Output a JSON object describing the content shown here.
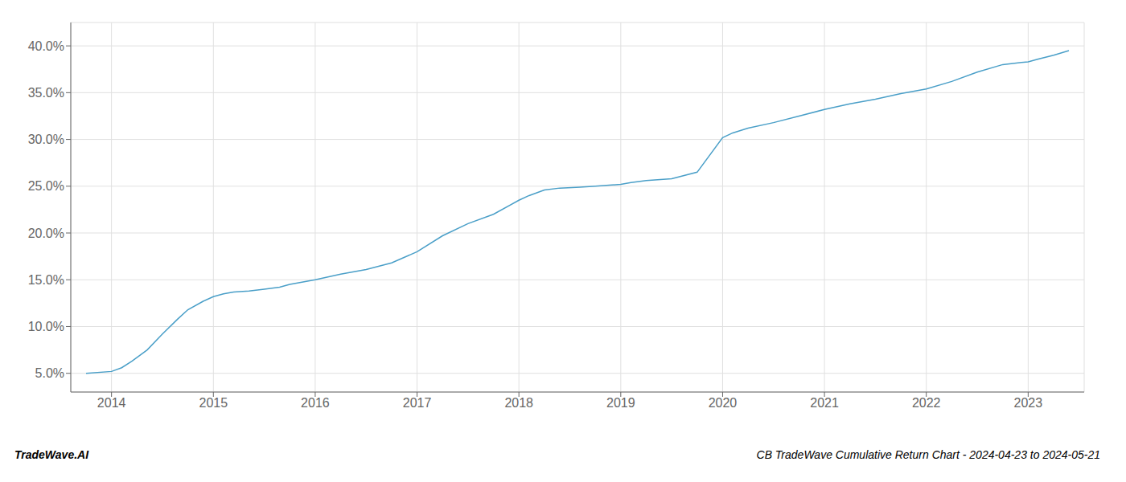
{
  "chart_data": {
    "type": "line",
    "title": "CB TradeWave Cumulative Return Chart - 2024-04-23 to 2024-05-21",
    "annotations": [
      "TradeWave.AI"
    ],
    "color": "#4a9fc8",
    "grid": true,
    "x": [
      2013.75,
      2014.0,
      2014.1,
      2014.2,
      2014.35,
      2014.5,
      2014.65,
      2014.75,
      2014.9,
      2015.0,
      2015.1,
      2015.2,
      2015.35,
      2015.5,
      2015.65,
      2015.75,
      2016.0,
      2016.25,
      2016.5,
      2016.75,
      2017.0,
      2017.25,
      2017.5,
      2017.75,
      2018.0,
      2018.1,
      2018.25,
      2018.4,
      2018.6,
      2018.75,
      2019.0,
      2019.1,
      2019.25,
      2019.5,
      2019.75,
      2020.0,
      2020.1,
      2020.25,
      2020.5,
      2020.75,
      2021.0,
      2021.25,
      2021.5,
      2021.75,
      2022.0,
      2022.25,
      2022.5,
      2022.75,
      2023.0,
      2023.1,
      2023.25,
      2023.4
    ],
    "values": [
      0.05,
      0.052,
      0.056,
      0.063,
      0.075,
      0.092,
      0.108,
      0.118,
      0.127,
      0.132,
      0.135,
      0.137,
      0.138,
      0.14,
      0.142,
      0.145,
      0.15,
      0.156,
      0.161,
      0.168,
      0.18,
      0.197,
      0.21,
      0.22,
      0.235,
      0.24,
      0.246,
      0.248,
      0.249,
      0.25,
      0.252,
      0.254,
      0.256,
      0.258,
      0.265,
      0.302,
      0.307,
      0.312,
      0.318,
      0.325,
      0.332,
      0.338,
      0.343,
      0.349,
      0.354,
      0.362,
      0.372,
      0.38,
      0.383,
      0.386,
      0.39,
      0.395
    ],
    "xlim": [
      2013.6,
      2023.55
    ],
    "ylim": [
      0.03,
      0.425
    ],
    "xticks": [
      2014,
      2015,
      2016,
      2017,
      2018,
      2019,
      2020,
      2021,
      2022,
      2023
    ],
    "yticks": [
      {
        "value": 0.05,
        "label": "5.0%"
      },
      {
        "value": 0.1,
        "label": "10.0%"
      },
      {
        "value": 0.15,
        "label": "15.0%"
      },
      {
        "value": 0.2,
        "label": "20.0%"
      },
      {
        "value": 0.25,
        "label": "25.0%"
      },
      {
        "value": 0.3,
        "label": "30.0%"
      },
      {
        "value": 0.35,
        "label": "35.0%"
      },
      {
        "value": 0.4,
        "label": "40.0%"
      }
    ]
  }
}
